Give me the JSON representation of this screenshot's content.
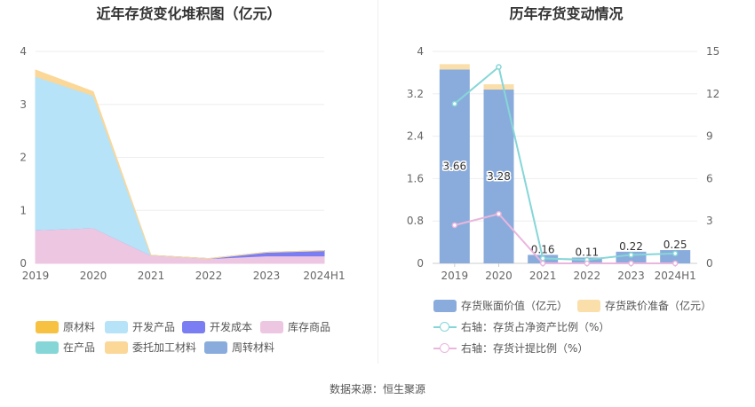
{
  "left_chart": {
    "title": "近年存货变化堆积图（亿元）",
    "chart_data": {
      "type": "area",
      "stacked": true,
      "categories": [
        "2019",
        "2020",
        "2021",
        "2022",
        "2023",
        "2024H1"
      ],
      "y_ticks": [
        "0",
        "1",
        "2",
        "3",
        "4"
      ],
      "ylim": [
        0,
        4
      ],
      "series": [
        {
          "name": "原材料",
          "color": "#F7C142",
          "values": [
            0,
            0,
            0,
            0,
            0,
            0
          ]
        },
        {
          "name": "开发产品",
          "color": "#B6E3F7",
          "values": [
            2.9,
            2.5,
            0,
            0,
            0,
            0
          ]
        },
        {
          "name": "开发成本",
          "color": "#7B7EF2",
          "values": [
            0,
            0,
            0,
            0,
            0.07,
            0.1
          ]
        },
        {
          "name": "库存商品",
          "color": "#EDC6E2",
          "values": [
            0.63,
            0.67,
            0.15,
            0.09,
            0.14,
            0.14
          ]
        },
        {
          "name": "在产品",
          "color": "#86D6D8",
          "values": [
            0,
            0,
            0,
            0,
            0,
            0
          ]
        },
        {
          "name": "委托加工材料",
          "color": "#FBD798",
          "values": [
            0.12,
            0.07,
            0,
            0,
            0,
            0
          ]
        },
        {
          "name": "周转材料",
          "color": "#8AACDC",
          "values": [
            0,
            0,
            0,
            0,
            0,
            0
          ]
        }
      ]
    }
  },
  "right_chart": {
    "title": "历年存货变动情况",
    "chart_data": {
      "type": "bar",
      "categories": [
        "2019",
        "2020",
        "2021",
        "2022",
        "2023",
        "2024H1"
      ],
      "y_left_ticks": [
        "0",
        "0.8",
        "1.6",
        "2.4",
        "3.2",
        "4"
      ],
      "y_right_ticks": [
        "0",
        "3",
        "6",
        "9",
        "12",
        "15"
      ],
      "ylim_left": [
        0,
        4
      ],
      "ylim_right": [
        0,
        15
      ],
      "bars": [
        {
          "name": "存货账面价值（亿元）",
          "color": "#8AACDC",
          "values": [
            3.66,
            3.28,
            0.16,
            0.11,
            0.22,
            0.25
          ],
          "labels": [
            "3.66",
            "3.28",
            "0.16",
            "0.11",
            "0.22",
            "0.25"
          ]
        },
        {
          "name": "存货跌价准备（亿元）",
          "color": "#FBDFAA",
          "values": [
            0.1,
            0.1,
            0,
            0,
            0,
            0
          ]
        }
      ],
      "lines": [
        {
          "name": "右轴：存货占净资产比例（%）",
          "color": "#86D6D8",
          "values": [
            11.3,
            13.9,
            0.35,
            0.25,
            0.6,
            0.7
          ]
        },
        {
          "name": "右轴：存货计提比例（%）",
          "color": "#EAB6DD",
          "values": [
            2.7,
            3.5,
            0,
            0,
            0,
            0
          ]
        }
      ]
    }
  },
  "source": "数据来源：恒生聚源"
}
